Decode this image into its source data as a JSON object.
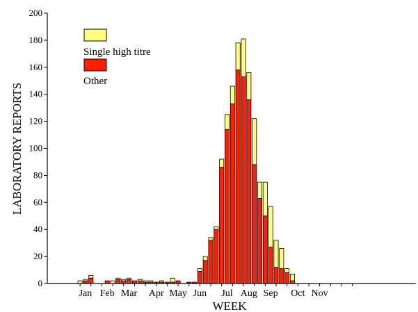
{
  "chart_data": {
    "type": "bar",
    "stacked": true,
    "xlabel": "WEEK",
    "ylabel": "LABORATORY REPORTS",
    "ylim": [
      0,
      200
    ],
    "yticks": [
      0,
      20,
      40,
      60,
      80,
      100,
      120,
      140,
      160,
      180,
      200
    ],
    "week_range": [
      1,
      52
    ],
    "month_labels": [
      {
        "label": "Jan",
        "week": 2
      },
      {
        "label": "Feb",
        "week": 6
      },
      {
        "label": "Mar",
        "week": 10
      },
      {
        "label": "Apr",
        "week": 15
      },
      {
        "label": "May",
        "week": 19
      },
      {
        "label": "Jun",
        "week": 23
      },
      {
        "label": "Jul",
        "week": 28
      },
      {
        "label": "Aug",
        "week": 32
      },
      {
        "label": "Sep",
        "week": 36
      },
      {
        "label": "Oct",
        "week": 41
      },
      {
        "label": "Nov",
        "week": 45
      }
    ],
    "legend": {
      "placement": "top-left"
    },
    "series": [
      {
        "name": "Single high titre",
        "color": "#ffff80",
        "values": [
          2,
          1,
          2,
          0,
          0,
          0,
          2,
          1,
          1,
          1,
          0,
          1,
          1,
          1,
          0,
          1,
          0,
          3,
          0,
          0,
          0,
          0,
          2,
          3,
          2,
          2,
          6,
          11,
          13,
          20,
          28,
          20,
          34,
          12,
          25,
          30,
          20,
          15,
          3,
          5,
          0,
          0,
          0,
          0,
          0,
          0,
          0,
          0,
          0,
          0,
          0,
          0
        ]
      },
      {
        "name": "Other",
        "color": "#ff2000",
        "values": [
          0,
          2,
          4,
          0,
          0,
          2,
          0,
          3,
          2,
          3,
          2,
          2,
          1,
          1,
          1,
          1,
          1,
          1,
          2,
          0,
          1,
          1,
          9,
          17,
          32,
          40,
          86,
          114,
          133,
          158,
          153,
          136,
          88,
          63,
          50,
          27,
          12,
          11,
          8,
          2,
          0,
          0,
          0,
          0,
          0,
          0,
          0,
          0,
          0,
          0,
          0,
          0
        ]
      }
    ]
  }
}
